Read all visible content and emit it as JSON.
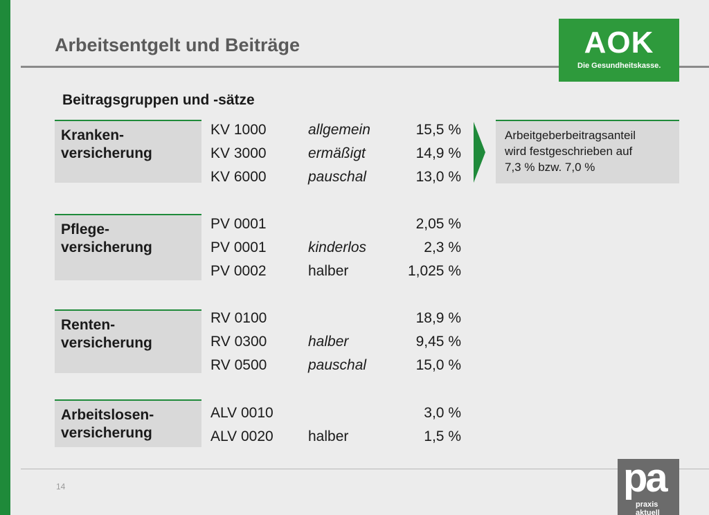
{
  "header": {
    "title": "Arbeitsentgelt und Beiträge"
  },
  "aok_logo": {
    "word": "AOK",
    "tagline": "Die Gesundheitskasse."
  },
  "subtitle": "Beitragsgruppen und -sätze",
  "groups": [
    {
      "label_line1": "Kranken-",
      "label_line2": "versicherung",
      "rows": [
        {
          "code": "KV 1000",
          "type": "allgemein",
          "rate": "15,5 %"
        },
        {
          "code": "KV 3000",
          "type": "ermäßigt",
          "rate": "14,9 %"
        },
        {
          "code": "KV 6000",
          "type": "pauschal",
          "rate": "13,0 %"
        }
      ]
    },
    {
      "label_line1": "Pflege-",
      "label_line2": "versicherung",
      "rows": [
        {
          "code": "PV 0001",
          "type": "",
          "rate": "2,05 %"
        },
        {
          "code": "PV 0001",
          "type": "kinderlos",
          "rate": "2,3 %"
        },
        {
          "code": "PV 0002",
          "type": "halber",
          "rate": "1,025 %"
        }
      ]
    },
    {
      "label_line1": "Renten-",
      "label_line2": "versicherung",
      "rows": [
        {
          "code": "RV 0100",
          "type": "",
          "rate": "18,9 %"
        },
        {
          "code": "RV 0300",
          "type": "halber",
          "rate": "9,45 %"
        },
        {
          "code": "RV 0500",
          "type": "pauschal",
          "rate": "15,0 %"
        }
      ]
    },
    {
      "label_line1": "Arbeitslosen-",
      "label_line2": "versicherung",
      "rows": [
        {
          "code": "ALV 0010",
          "type": "",
          "rate": "3,0 %"
        },
        {
          "code": "ALV 0020",
          "type": "halber",
          "rate": "1,5 %"
        }
      ]
    }
  ],
  "note": {
    "line1": "Arbeitgeberbeitragsanteil",
    "line2": "wird festgeschrieben auf",
    "line3": "7,3 % bzw. 7,0 %"
  },
  "footer": {
    "page_number": "14"
  },
  "pa_logo": {
    "mark": "pa",
    "text": "praxis aktuell"
  },
  "colors": {
    "accent_green": "#1f8a3a",
    "box_gray": "#d9d9d9",
    "background": "#ececec"
  }
}
